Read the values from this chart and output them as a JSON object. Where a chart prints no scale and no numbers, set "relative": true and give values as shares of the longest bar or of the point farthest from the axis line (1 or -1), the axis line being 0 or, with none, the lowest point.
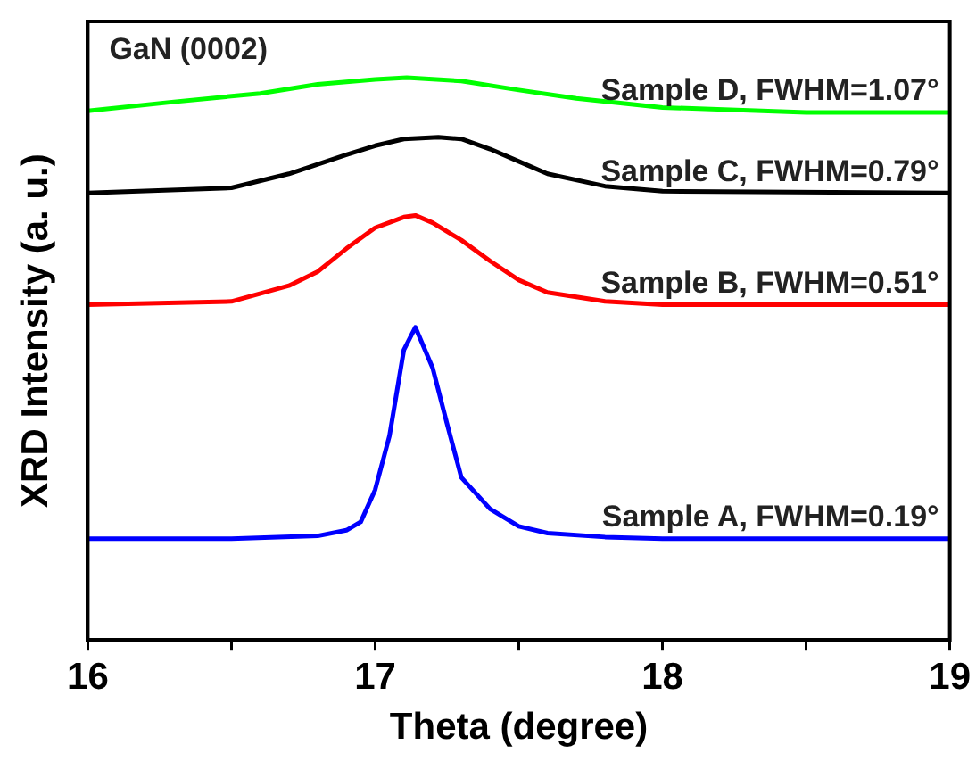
{
  "chart_data": {
    "type": "line",
    "relative": true,
    "xlabel": "Theta (degree)",
    "ylabel": "XRD Intensity (a. u.)",
    "annotations": [
      "GaN (0002)"
    ],
    "xlim": [
      16,
      19
    ],
    "xticks": [
      16,
      {
        "value": 16.5,
        "label": null
      },
      17,
      {
        "value": 17.5,
        "label": null
      },
      18,
      {
        "value": 18.5,
        "label": null
      },
      19
    ],
    "marker": "none",
    "grid": false,
    "legend": false,
    "series": [
      {
        "name": "Sample A, FWHM=0.19°",
        "color": "#0000ff",
        "x": [
          16,
          16.5,
          16.8,
          16.9,
          16.95,
          17.0,
          17.05,
          17.1,
          17.14,
          17.2,
          17.25,
          17.3,
          17.4,
          17.5,
          17.6,
          17.8,
          18,
          19
        ],
        "values": [
          0.18,
          0.18,
          0.185,
          0.195,
          0.21,
          0.267,
          0.363,
          0.516,
          0.556,
          0.484,
          0.385,
          0.289,
          0.233,
          0.202,
          0.19,
          0.183,
          0.18,
          0.18
        ]
      },
      {
        "name": "Sample B, FWHM=0.51°",
        "color": "#ff0000",
        "x": [
          16,
          16.5,
          16.7,
          16.8,
          16.9,
          17.0,
          17.1,
          17.14,
          17.2,
          17.3,
          17.4,
          17.5,
          17.6,
          17.8,
          18,
          19
        ],
        "values": [
          0.596,
          0.602,
          0.63,
          0.655,
          0.696,
          0.733,
          0.752,
          0.755,
          0.742,
          0.711,
          0.674,
          0.64,
          0.618,
          0.602,
          0.596,
          0.596
        ]
      },
      {
        "name": "Sample C, FWHM=0.79°",
        "color": "#000000",
        "x": [
          16,
          16.5,
          16.7,
          16.9,
          17.0,
          17.1,
          17.22,
          17.3,
          17.4,
          17.5,
          17.6,
          17.8,
          18,
          19
        ],
        "values": [
          0.795,
          0.804,
          0.829,
          0.863,
          0.879,
          0.891,
          0.894,
          0.891,
          0.873,
          0.851,
          0.829,
          0.807,
          0.798,
          0.795
        ]
      },
      {
        "name": "Sample D, FWHM=1.07°",
        "color": "#00ff00",
        "x": [
          16,
          16.3,
          16.6,
          16.8,
          17.0,
          17.11,
          17.3,
          17.5,
          17.7,
          18,
          18.5,
          19
        ],
        "values": [
          0.941,
          0.957,
          0.972,
          0.988,
          0.997,
          1.0,
          0.994,
          0.978,
          0.963,
          0.947,
          0.938,
          0.938
        ]
      }
    ]
  }
}
